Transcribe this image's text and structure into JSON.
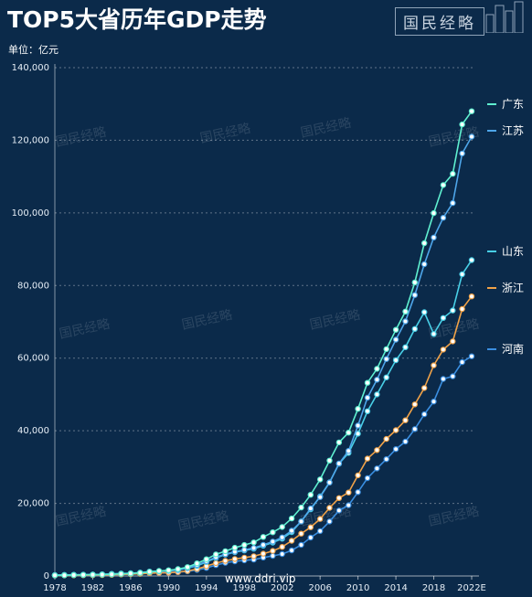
{
  "header": {
    "title": "TOP5大省历年GDP走势",
    "unit": "单位：亿元",
    "brand": "国民经略"
  },
  "footer": {
    "site": "www.ddri.vip"
  },
  "watermark_text": "国民经略",
  "colors": {
    "background": "#0b2a4a",
    "guangdong": "#5ff0d0",
    "jiangsu": "#4ea6ea",
    "shandong": "#48cfe6",
    "zhejiang": "#f0a248",
    "henan": "#3a8ee0"
  },
  "chart_data": {
    "type": "line",
    "title": "TOP5大省历年GDP走势",
    "ylabel": "单位：亿元",
    "xlabel": "",
    "ylim": [
      0,
      140000
    ],
    "yticks": [
      0,
      20000,
      40000,
      60000,
      80000,
      100000,
      120000,
      140000
    ],
    "ytick_labels": [
      "0",
      "20,000",
      "40,000",
      "60,000",
      "80,000",
      "100,000",
      "120,000",
      "140,000"
    ],
    "xtick_labels": [
      "1978",
      "1982",
      "1986",
      "1990",
      "1994",
      "1998",
      "2002",
      "2006",
      "2010",
      "2014",
      "2018",
      "2022E"
    ],
    "x": [
      1978,
      1979,
      1980,
      1981,
      1982,
      1983,
      1984,
      1985,
      1986,
      1987,
      1988,
      1989,
      1990,
      1991,
      1992,
      1993,
      1994,
      1995,
      1996,
      1997,
      1998,
      1999,
      2000,
      2001,
      2002,
      2003,
      2004,
      2005,
      2006,
      2007,
      2008,
      2009,
      2010,
      2011,
      2012,
      2013,
      2014,
      2015,
      2016,
      2017,
      2018,
      2019,
      2020,
      2021,
      2022
    ],
    "grid": true,
    "legend": "right",
    "series": [
      {
        "name": "广东",
        "values": [
          186,
          209,
          250,
          290,
          340,
          368,
          459,
          577,
          668,
          847,
          1155,
          1381,
          1559,
          1893,
          2448,
          3469,
          4619,
          5934,
          6835,
          7774,
          8531,
          9250,
          10741,
          12039,
          13502,
          15845,
          18865,
          22367,
          26588,
          31777,
          36797,
          39483,
          46036,
          53210,
          57068,
          62475,
          67810,
          72813,
          80855,
          91649,
          99945,
          107671,
          110761,
          124370,
          128000
        ]
      },
      {
        "name": "江苏",
        "values": [
          249,
          298,
          320,
          350,
          390,
          438,
          518,
          652,
          744,
          922,
          1209,
          1322,
          1417,
          1601,
          2136,
          2998,
          4057,
          5155,
          6004,
          6680,
          7200,
          7697,
          8554,
          9457,
          10632,
          12461,
          15004,
          18599,
          21742,
          25741,
          30982,
          34457,
          41425,
          49110,
          54058,
          59753,
          65088,
          70116,
          77388,
          85870,
          93208,
          98657,
          102719,
          116364,
          121000
        ]
      },
      {
        "name": "山东",
        "values": [
          225,
          251,
          292,
          346,
          395,
          459,
          581,
          681,
          742,
          892,
          1118,
          1294,
          1511,
          1810,
          2197,
          2770,
          3844,
          4953,
          5883,
          6537,
          7021,
          7493,
          8338,
          9195,
          10275,
          12078,
          15021,
          18366,
          21900,
          25776,
          30933,
          33896,
          39170,
          45362,
          50013,
          54684,
          59426,
          63002,
          68024,
          72634,
          66649,
          71068,
          73129,
          83096,
          87000
        ]
      },
      {
        "name": "浙江",
        "values": [
          124,
          158,
          180,
          204,
          235,
          257,
          323,
          429,
          502,
          606,
          770,
          850,
          905,
          1089,
          1376,
          1926,
          2689,
          3558,
          4188,
          4686,
          5053,
          5444,
          6141,
          6898,
          8004,
          9705,
          11649,
          13418,
          15718,
          18754,
          21463,
          22990,
          27722,
          32319,
          34665,
          37757,
          40173,
          42886,
          47251,
          51768,
          58003,
          62352,
          64613,
          73516,
          77000
        ]
      },
      {
        "name": "河南",
        "values": [
          162,
          190,
          229,
          249,
          263,
          328,
          370,
          451,
          502,
          610,
          749,
          850,
          934,
          1045,
          1279,
          1661,
          2217,
          2988,
          3635,
          4041,
          4308,
          4518,
          5053,
          5533,
          6035,
          7048,
          8554,
          10587,
          12363,
          15012,
          18019,
          19480,
          23092,
          26931,
          29599,
          32191,
          34938,
          37002,
          40471,
          44553,
          48055,
          54259,
          54997,
          58887,
          60500
        ]
      }
    ]
  }
}
